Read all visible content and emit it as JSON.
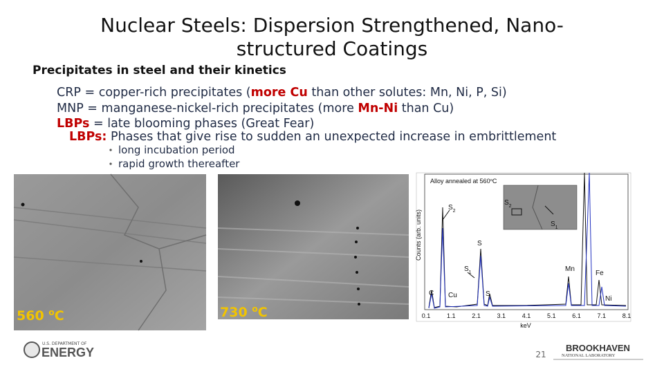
{
  "title_lines": [
    "Nuclear Steels: Dispersion Strengthened, Nano-",
    "structured Coatings"
  ],
  "subtitle": "Precipitates in steel and their kinetics",
  "definitions": [
    [
      {
        "text": "CRP",
        "style": "plain"
      },
      {
        "text": " = copper-rich precipitates (",
        "style": "plain"
      },
      {
        "text": "more Cu",
        "style": "bold-red"
      },
      {
        "text": " than other solutes: Mn, Ni, P, Si)",
        "style": "plain"
      }
    ],
    [
      {
        "text": "MNP = manganese-nickel-rich precipitates (more ",
        "style": "plain"
      },
      {
        "text": "Mn-Ni",
        "style": "bold-red"
      },
      {
        "text": " than Cu)",
        "style": "plain"
      }
    ],
    [
      {
        "text": "LBPs",
        "style": "bold-red"
      },
      {
        "text": " = late blooming phases (Great Fear)",
        "style": "plain"
      }
    ],
    [
      {
        "text": "LBPs:",
        "style": "bold-red"
      },
      {
        "text": " Phases that give rise to sudden an unexpected increase in embrittlement",
        "style": "plain"
      }
    ]
  ],
  "bullets": [
    "long incubation period",
    "rapid growth thereafter"
  ],
  "images": [
    {
      "label": {
        "value": "560 ",
        "sup": "o",
        "unit": "C"
      }
    },
    {
      "label": {
        "value": "730 ",
        "sup": "o",
        "unit": "C"
      }
    }
  ],
  "spectrum": {
    "inset_title": {
      "value": "Alloy annealed at 560",
      "sup": "o",
      "unit": "C"
    },
    "inset_labels": [
      {
        "main": "S",
        "sub": "2",
        "color": "#e02020"
      },
      {
        "main": "S",
        "sub": "1",
        "color": "#2030c0"
      }
    ],
    "y_label": "Counts (arb. units)",
    "x_label": "keV",
    "x_ticks": [
      "0.1",
      "1.1",
      "2.1",
      "3.1",
      "4.1",
      "5.1",
      "6.1",
      "7.1",
      "8.1"
    ],
    "peaks": [
      {
        "main": "S",
        "sub": "2"
      },
      {
        "main": "S",
        "sub": ""
      },
      {
        "main": "S",
        "sub": "1"
      },
      {
        "main": "C",
        "sub": ""
      },
      {
        "main": "Cu",
        "sub": ""
      },
      {
        "main": "S",
        "sub": ""
      },
      {
        "main": "Mn",
        "sub": ""
      },
      {
        "main": "Fe",
        "sub": ""
      },
      {
        "main": "Ni",
        "sub": ""
      }
    ]
  },
  "page_number": "21",
  "logos": {
    "doe_top": "U.S. DEPARTMENT OF",
    "doe_main": "ENERGY",
    "bnl_main": "BROOKHAVEN",
    "bnl_sub": "NATIONAL LABORATORY"
  }
}
